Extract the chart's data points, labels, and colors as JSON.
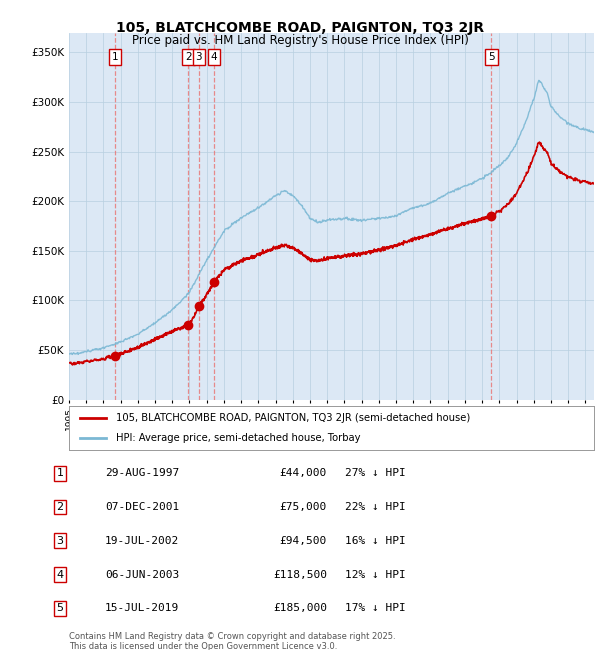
{
  "title": "105, BLATCHCOMBE ROAD, PAIGNTON, TQ3 2JR",
  "subtitle": "Price paid vs. HM Land Registry's House Price Index (HPI)",
  "ylim": [
    0,
    370000
  ],
  "yticks": [
    0,
    50000,
    100000,
    150000,
    200000,
    250000,
    300000,
    350000
  ],
  "ytick_labels": [
    "£0",
    "£50K",
    "£100K",
    "£150K",
    "£200K",
    "£250K",
    "£300K",
    "£350K"
  ],
  "xlim_start": 1995.0,
  "xlim_end": 2025.5,
  "sale_dates": [
    1997.66,
    2001.93,
    2002.55,
    2003.43,
    2019.54
  ],
  "sale_prices": [
    44000,
    75000,
    94500,
    118500,
    185000
  ],
  "sale_labels": [
    "1",
    "2",
    "3",
    "4",
    "5"
  ],
  "legend_property": "105, BLATCHCOMBE ROAD, PAIGNTON, TQ3 2JR (semi-detached house)",
  "legend_hpi": "HPI: Average price, semi-detached house, Torbay",
  "table_entries": [
    {
      "num": "1",
      "date": "29-AUG-1997",
      "price": "£44,000",
      "hpi": "27% ↓ HPI"
    },
    {
      "num": "2",
      "date": "07-DEC-2001",
      "price": "£75,000",
      "hpi": "22% ↓ HPI"
    },
    {
      "num": "3",
      "date": "19-JUL-2002",
      "price": "£94,500",
      "hpi": "16% ↓ HPI"
    },
    {
      "num": "4",
      "date": "06-JUN-2003",
      "price": "£118,500",
      "hpi": "12% ↓ HPI"
    },
    {
      "num": "5",
      "date": "15-JUL-2019",
      "price": "£185,000",
      "hpi": "17% ↓ HPI"
    }
  ],
  "footnote1": "Contains HM Land Registry data © Crown copyright and database right 2025.",
  "footnote2": "This data is licensed under the Open Government Licence v3.0.",
  "hpi_color": "#7bb8d4",
  "property_color": "#cc0000",
  "vline_color": "#e87878",
  "background_color": "#dce8f5",
  "plot_bg": "#ffffff",
  "grid_color": "#b8cfe0"
}
